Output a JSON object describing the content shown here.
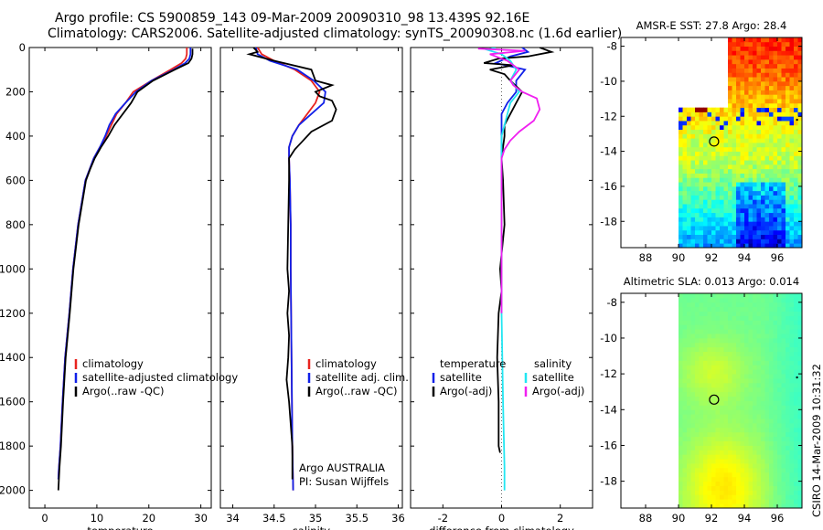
{
  "title": {
    "line1": "Argo profile: CS 5900859_143 09-Mar-2009 20090310_98 13.439S 92.16E",
    "line2": "Climatology: CARS2006. Satellite-adjusted climatology: synTS_20090308.nc (1.6d earlier)"
  },
  "stamp": "CSIRO 14-Mar-2009 10:31:32",
  "colors": {
    "red": "#e8231f",
    "blue": "#1020e8",
    "black": "#000000",
    "cyan": "#22e6f2",
    "magenta": "#f020f0",
    "axis": "#000000",
    "dotted": "#666666"
  },
  "chart_data": [
    {
      "type": "line",
      "id": "temperature",
      "xlabel": "temperature",
      "ylabel": "",
      "xlim": [
        -3,
        32
      ],
      "ylim": [
        2080,
        0
      ],
      "y_reversed": true,
      "xticks": [
        0,
        10,
        20,
        30
      ],
      "yticks": [
        0,
        200,
        400,
        600,
        800,
        1000,
        1200,
        1400,
        1600,
        1800,
        2000
      ],
      "legend": {
        "placement": "lower-center",
        "items": [
          "climatology",
          "satellite-adjusted climatology",
          "Argo(..raw -QC)"
        ]
      },
      "series": [
        {
          "name": "climatology",
          "color": "red",
          "x": [
            27.3,
            27.3,
            27.1,
            26.3,
            24.2,
            20.5,
            17,
            15.5,
            13.8,
            12.8,
            11.8,
            10.6,
            9.4,
            8.6,
            7.8,
            7.1,
            6.4,
            5.4,
            4.7,
            3.9,
            3.4,
            3.0,
            2.7,
            2.6
          ],
          "y": [
            0,
            30,
            50,
            70,
            100,
            150,
            200,
            250,
            300,
            350,
            400,
            450,
            500,
            550,
            600,
            700,
            800,
            1000,
            1200,
            1400,
            1600,
            1800,
            1900,
            1950
          ]
        },
        {
          "name": "satellite-adjusted climatology",
          "color": "blue",
          "x": [
            28.0,
            28.0,
            27.8,
            27,
            24.8,
            20.5,
            17.5,
            15.5,
            13.6,
            12.4,
            11.6,
            10.6,
            9.4,
            8.6,
            7.8,
            7.1,
            6.4,
            5.4,
            4.7,
            3.9,
            3.4,
            3.0,
            2.7,
            2.6
          ],
          "y": [
            0,
            30,
            50,
            70,
            100,
            150,
            200,
            250,
            300,
            350,
            400,
            450,
            500,
            550,
            600,
            700,
            800,
            1000,
            1200,
            1400,
            1600,
            1800,
            1900,
            1950
          ]
        },
        {
          "name": "Argo(..raw -QC)",
          "color": "black",
          "x": [
            28.4,
            28.4,
            28.2,
            27.6,
            25,
            20.8,
            17.8,
            16.6,
            15,
            13.4,
            12.2,
            10.8,
            9.6,
            8.7,
            7.9,
            7.2,
            6.5,
            5.5,
            4.8,
            4.0,
            3.5,
            3.1,
            2.8,
            2.6
          ],
          "y": [
            5,
            30,
            50,
            70,
            100,
            150,
            200,
            250,
            300,
            350,
            400,
            450,
            500,
            550,
            600,
            700,
            800,
            1000,
            1200,
            1400,
            1600,
            1800,
            1900,
            2000
          ]
        }
      ]
    },
    {
      "type": "line",
      "id": "salinity",
      "xlabel": "salinity",
      "xlim": [
        33.85,
        36.05
      ],
      "ylim": [
        2080,
        0
      ],
      "y_reversed": true,
      "xticks": [
        34,
        34.5,
        35,
        35.5,
        36
      ],
      "yticks": [],
      "legend": {
        "placement": "lower-center",
        "items": [
          "climatology",
          "satellite adj. clim.",
          "Argo(..raw -QC)"
        ]
      },
      "annotations": [
        "Argo AUSTRALIA",
        "PI: Susan Wijffels"
      ],
      "series": [
        {
          "name": "climatology",
          "color": "red",
          "x": [
            34.3,
            34.35,
            34.5,
            34.75,
            34.95,
            35.05,
            35.0,
            34.9,
            34.8,
            34.72,
            34.68,
            34.68,
            34.69,
            34.7,
            34.7,
            34.71,
            34.72,
            34.73
          ],
          "y": [
            0,
            30,
            60,
            100,
            150,
            200,
            250,
            300,
            350,
            400,
            450,
            500,
            600,
            800,
            1000,
            1400,
            1800,
            2000
          ]
        },
        {
          "name": "satellite adj. clim.",
          "color": "blue",
          "x": [
            34.28,
            34.3,
            34.45,
            34.78,
            34.98,
            35.12,
            35.1,
            34.95,
            34.8,
            34.72,
            34.68,
            34.68,
            34.69,
            34.7,
            34.7,
            34.71,
            34.72,
            34.73
          ],
          "y": [
            0,
            30,
            60,
            100,
            150,
            200,
            250,
            300,
            350,
            400,
            450,
            500,
            600,
            800,
            1000,
            1400,
            1800,
            2000
          ]
        },
        {
          "name": "Argo(..raw -QC)",
          "color": "black",
          "x": [
            34.25,
            34.3,
            34.2,
            34.5,
            34.95,
            35.0,
            35.2,
            35.0,
            35.05,
            35.2,
            35.25,
            35.2,
            34.95,
            34.85,
            34.75,
            34.68,
            34.68,
            34.67,
            34.66,
            34.68,
            34.66,
            34.68,
            34.67,
            34.65,
            34.68,
            34.7,
            34.72,
            34.72
          ],
          "y": [
            0,
            20,
            30,
            60,
            100,
            150,
            170,
            200,
            220,
            240,
            280,
            330,
            380,
            420,
            460,
            500,
            600,
            800,
            1000,
            1100,
            1200,
            1300,
            1400,
            1500,
            1600,
            1700,
            1800,
            1950
          ]
        }
      ]
    },
    {
      "type": "line",
      "id": "difference",
      "xlabel": "difference from climatology",
      "xlim": [
        -3.1,
        3.1
      ],
      "ylim": [
        2080,
        0
      ],
      "y_reversed": true,
      "xticks": [
        -2,
        0,
        2
      ],
      "yticks": [],
      "legend": {
        "placement": "lower-center",
        "groups": [
          "temperature",
          "salinity"
        ],
        "items": [
          "satellite",
          "Argo(-adj)",
          "satellite",
          "Argo(-adj)"
        ]
      },
      "series": [
        {
          "name": "temperature satellite",
          "color": "blue",
          "x": [
            0.7,
            0.9,
            0.3,
            -0.2,
            0.8,
            0.5,
            0.5,
            0.2,
            0,
            0,
            0
          ],
          "y": [
            0,
            20,
            40,
            70,
            100,
            150,
            200,
            250,
            300,
            400,
            500
          ]
        },
        {
          "name": "temperature Argo(-adj)",
          "color": "black",
          "x": [
            1.3,
            1.7,
            0.9,
            -0.1,
            -0.6,
            0.4,
            -0.4,
            0.1,
            0.3,
            0.7,
            0.5,
            0.3,
            0.1,
            0.1,
            0.05,
            0,
            0.05,
            0.1,
            -0.05,
            0,
            -0.1,
            -0.15,
            -0.1,
            -0.1,
            -0.05
          ],
          "y": [
            0,
            20,
            40,
            50,
            70,
            80,
            100,
            120,
            150,
            200,
            250,
            300,
            350,
            400,
            450,
            500,
            600,
            800,
            1000,
            1100,
            1200,
            1400,
            1600,
            1800,
            1830
          ]
        },
        {
          "name": "salinity satellite",
          "color": "cyan",
          "x": [
            -0.2,
            -0.5,
            0.0,
            0.3,
            0.5,
            0.3,
            0.6,
            0.3,
            0.2,
            0.1,
            0.0,
            0.0,
            0,
            0,
            0,
            0.05,
            0.1,
            0.1
          ],
          "y": [
            0,
            10,
            30,
            60,
            100,
            150,
            200,
            250,
            300,
            350,
            400,
            450,
            500,
            800,
            1200,
            1600,
            1900,
            2000
          ]
        },
        {
          "name": "salinity Argo(-adj)",
          "color": "magenta",
          "x": [
            -0.8,
            0.8,
            -0.4,
            0.2,
            0.6,
            0.3,
            0.4,
            0.7,
            1.2,
            1.3,
            1.1,
            0.6,
            0.3,
            0.1,
            0.0,
            0.0,
            0.0,
            0,
            0
          ],
          "y": [
            5,
            15,
            30,
            60,
            100,
            150,
            170,
            200,
            230,
            280,
            330,
            380,
            420,
            460,
            500,
            600,
            800,
            1000,
            1200
          ]
        }
      ]
    },
    {
      "type": "heatmap",
      "id": "sst-map",
      "title": "AMSR-E SST: 27.8 Argo: 28.4",
      "xlim": [
        86.5,
        97.5
      ],
      "ylim": [
        -19.5,
        -7.5
      ],
      "xticks": [
        88,
        90,
        92,
        94,
        96
      ],
      "yticks": [
        -8,
        -10,
        -12,
        -14,
        -16,
        -18
      ],
      "marker": {
        "lon": 92.16,
        "lat": -13.44
      }
    },
    {
      "type": "heatmap",
      "id": "sla-map",
      "title": "Altimetric SLA: 0.013 Argo: 0.014",
      "xlim": [
        86.5,
        97.5
      ],
      "ylim": [
        -19.5,
        -7.5
      ],
      "xticks": [
        88,
        90,
        92,
        94,
        96
      ],
      "yticks": [
        -8,
        -10,
        -12,
        -14,
        -16,
        -18
      ],
      "marker": {
        "lon": 92.16,
        "lat": -13.44
      }
    }
  ]
}
